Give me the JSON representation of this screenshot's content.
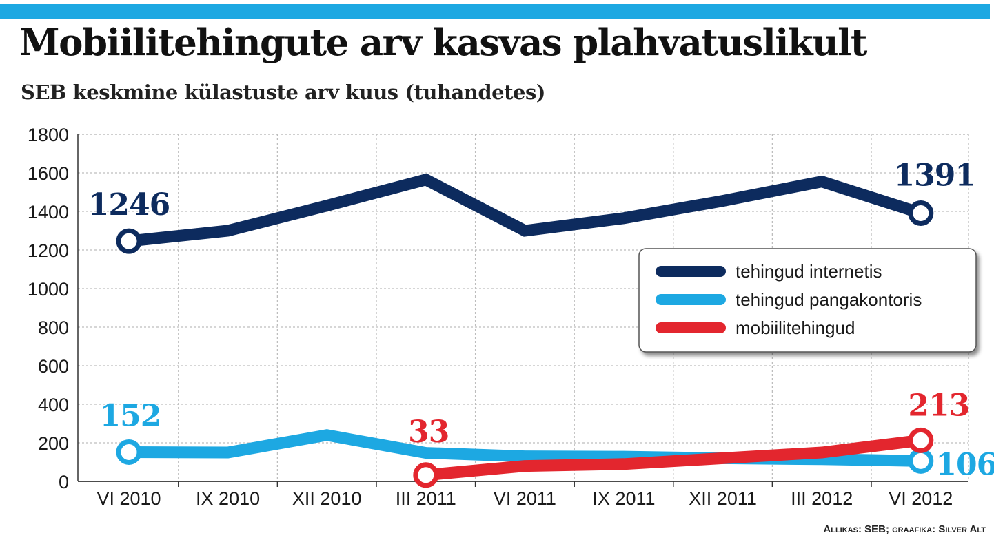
{
  "chart_data": {
    "type": "line",
    "title": "Mobiilitehingute arv kasvas plahvatuslikult",
    "subtitle": "SEB keskmine külastuste arv kuus (tuhandetes)",
    "source": "Allikas: SEB; graafika: Silver Alt",
    "categories": [
      "VI 2010",
      "IX 2010",
      "XII 2010",
      "III 2011",
      "VI 2011",
      "IX 2011",
      "XII 2011",
      "III 2012",
      "VI 2012"
    ],
    "yticks": [
      "0",
      "200",
      "400",
      "600",
      "800",
      "1000",
      "1200",
      "1400",
      "1600",
      "1800"
    ],
    "ylim": [
      0,
      1800
    ],
    "grid": true,
    "legend_position": "right",
    "series": [
      {
        "name": "tehingud internetis",
        "color": "#0d2b5e",
        "values": [
          1246,
          1300,
          1430,
          1565,
          1300,
          1365,
          1455,
          1555,
          1391
        ],
        "labels": [
          {
            "index": 0,
            "text": "1246"
          },
          {
            "index": 8,
            "text": "1391"
          }
        ]
      },
      {
        "name": "tehingud pangakontoris",
        "color": "#1da8e2",
        "values": [
          152,
          150,
          240,
          148,
          130,
          128,
          120,
          115,
          106
        ],
        "labels": [
          {
            "index": 0,
            "text": "152"
          },
          {
            "index": 8,
            "text": "106"
          }
        ]
      },
      {
        "name": "mobiilitehingud",
        "color": "#e3262e",
        "values": [
          null,
          null,
          null,
          33,
          80,
          90,
          120,
          150,
          213
        ],
        "labels": [
          {
            "index": 3,
            "text": "33"
          },
          {
            "index": 8,
            "text": "213"
          }
        ]
      }
    ]
  }
}
